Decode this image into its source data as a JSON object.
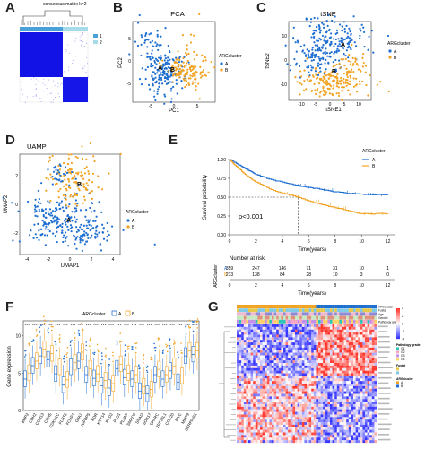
{
  "panels": {
    "a": {
      "letter": "A",
      "title": "consensus matrix k=2",
      "legend": [
        "1",
        "2"
      ],
      "colors": {
        "c1": "#4aa0d8",
        "c2": "#a6dbe8",
        "heat": "#1212e6"
      }
    },
    "b": {
      "letter": "B"
    },
    "c": {
      "letter": "C"
    },
    "d": {
      "letter": "D"
    },
    "e": {
      "letter": "E"
    },
    "f": {
      "letter": "F"
    },
    "g": {
      "letter": "G"
    }
  },
  "colors": {
    "A": "#1f6fd1",
    "B": "#f2a324"
  },
  "chart_data": [
    {
      "type": "scatter",
      "panel": "B",
      "title": "PCA",
      "xlabel": "PC1",
      "ylabel": "PC2",
      "xticks": [
        "-5",
        "0",
        "5"
      ],
      "yticks": [
        "-5",
        "0",
        "5"
      ],
      "legend_title": "ARGcluster",
      "legend": [
        "A",
        "B"
      ],
      "cluster_labels": [
        "A",
        "B"
      ]
    },
    {
      "type": "scatter",
      "panel": "C",
      "title": "tSNE",
      "xlabel": "tSNE1",
      "ylabel": "tSNE2",
      "xticks": [
        "-10",
        "-5",
        "0",
        "5",
        "10"
      ],
      "yticks": [
        "-10",
        "0",
        "10"
      ],
      "legend_title": "ARGcluster",
      "legend": [
        "A",
        "B"
      ],
      "cluster_labels": [
        "A",
        "B"
      ]
    },
    {
      "type": "scatter",
      "panel": "D",
      "title": "UAMP",
      "xlabel": "UMAP1",
      "ylabel": "UMAP2",
      "xticks": [
        "-4",
        "-2",
        "0",
        "2",
        "4"
      ],
      "yticks": [
        "-2",
        "0",
        "2"
      ],
      "legend_title": "ARGcluster",
      "legend": [
        "A",
        "B"
      ],
      "cluster_labels": [
        "A",
        "B"
      ]
    },
    {
      "type": "line",
      "panel": "E",
      "xlabel": "Time(years)",
      "ylabel": "Survival probability",
      "xticks": [
        "0",
        "2",
        "4",
        "6",
        "8",
        "10",
        "12"
      ],
      "yticks": [
        "0.00",
        "0.25",
        "0.50",
        "0.75",
        "1.00"
      ],
      "xlim": [
        0,
        12.5
      ],
      "ylim": [
        0,
        1
      ],
      "legend_title": "ARGcluster",
      "legend": [
        "A",
        "B"
      ],
      "pvalue": "p<0.001",
      "median_B": 5.2,
      "series": [
        {
          "name": "A",
          "x": [
            0,
            0.5,
            1,
            1.5,
            2,
            3,
            4,
            5,
            6,
            7,
            8,
            9,
            10,
            11,
            12
          ],
          "y": [
            1.0,
            0.95,
            0.9,
            0.85,
            0.8,
            0.74,
            0.7,
            0.66,
            0.63,
            0.6,
            0.57,
            0.55,
            0.54,
            0.53,
            0.53
          ]
        },
        {
          "name": "B",
          "x": [
            0,
            0.5,
            1,
            1.5,
            2,
            3,
            4,
            5,
            5.2,
            6,
            7,
            8,
            9,
            10,
            11,
            12
          ],
          "y": [
            1.0,
            0.91,
            0.83,
            0.76,
            0.7,
            0.61,
            0.55,
            0.51,
            0.5,
            0.45,
            0.4,
            0.36,
            0.32,
            0.28,
            0.28,
            0.28
          ]
        }
      ],
      "risk_table": {
        "title": "Number at risk",
        "ylabel": "ARGcluster",
        "xlabel": "Time(years)",
        "times": [
          "0",
          "2",
          "4",
          "6",
          "8",
          "10",
          "12"
        ],
        "rows": [
          {
            "name": "A",
            "values": [
              "359",
              "247",
              "146",
              "71",
              "31",
              "10",
              "1"
            ]
          },
          {
            "name": "B",
            "values": [
              "213",
              "138",
              "84",
              "28",
              "10",
              "3",
              "0"
            ]
          }
        ]
      }
    },
    {
      "type": "box",
      "panel": "F",
      "ylabel": "Gene expression",
      "legend_title": "ARGcluster",
      "legend": [
        "A",
        "B"
      ],
      "significance": "***",
      "yticks": [
        "0",
        "5",
        "10"
      ],
      "ylim": [
        0,
        12
      ],
      "categories": [
        "BMP2",
        "CDH2",
        "CDH13",
        "CDH5",
        "CDKN1C",
        "FLRT2",
        "FOXF1",
        "GJA1",
        "IGFBP5",
        "KDR",
        "KRT14",
        "PKD2",
        "PLD1",
        "PLVAP",
        "SMAD3",
        "SNAI2",
        "SOX17",
        "SPARC",
        "ZFP36L1",
        "CDC20",
        "MYC",
        "MMP9",
        "SERPINE1"
      ],
      "series": [
        {
          "name": "A",
          "medians": [
            4.2,
            6.0,
            7.3,
            6.8,
            4.9,
            3.4,
            5.8,
            6.6,
            4.8,
            4.3,
            3.3,
            3.0,
            5.6,
            4.4,
            4.2,
            2.6,
            2.2,
            4.8,
            4.2,
            5.3,
            3.8,
            7.3,
            7.5
          ]
        },
        {
          "name": "B",
          "medians": [
            5.0,
            6.6,
            8.2,
            7.6,
            5.8,
            4.1,
            6.4,
            7.8,
            5.6,
            4.9,
            4.0,
            3.6,
            6.2,
            5.0,
            4.8,
            3.2,
            2.8,
            5.5,
            4.8,
            5.9,
            4.6,
            8.0,
            8.0
          ]
        }
      ]
    },
    {
      "type": "heatmap",
      "panel": "G",
      "annotation_tracks": [
        "ARGcluster",
        "Fustat",
        "Age",
        "Gender",
        "Pathology grade"
      ],
      "legend_titles": [
        "Pathology grade",
        "Fustat",
        "ARGcluster"
      ],
      "legend_items": [
        "G1",
        "G2",
        "G3",
        "G4",
        "A",
        "B"
      ],
      "scale": [
        "4",
        "2",
        "0",
        "-2",
        "-4"
      ],
      "gene_count": 23
    }
  ]
}
